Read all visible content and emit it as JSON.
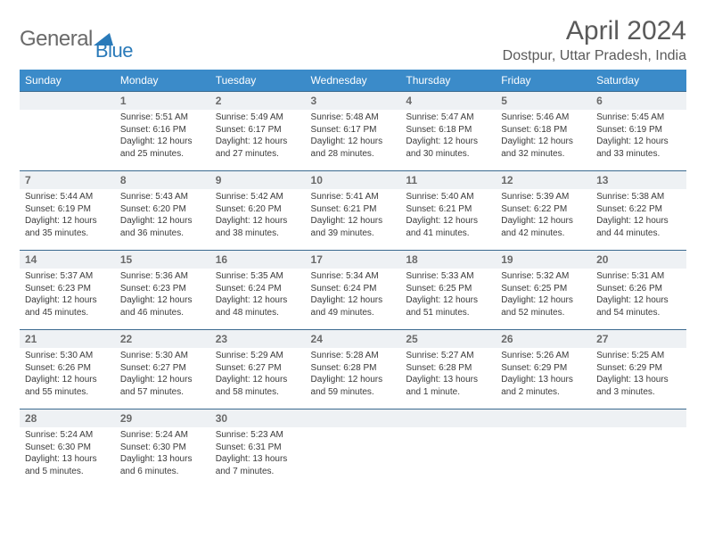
{
  "brand": {
    "general": "General",
    "blue": "Blue"
  },
  "title": "April 2024",
  "location": "Dostpur, Uttar Pradesh, India",
  "colors": {
    "header_bg": "#3b8bc9",
    "header_text": "#ffffff",
    "daynum_bg": "#eef1f4",
    "rule": "#3b6a8f",
    "text": "#3a3a3a",
    "muted": "#6a6a6a",
    "brand_blue": "#2a7ab9"
  },
  "days_of_week": [
    "Sunday",
    "Monday",
    "Tuesday",
    "Wednesday",
    "Thursday",
    "Friday",
    "Saturday"
  ],
  "weeks": [
    [
      null,
      {
        "n": "1",
        "sr": "5:51 AM",
        "ss": "6:16 PM",
        "dl": "12 hours and 25 minutes."
      },
      {
        "n": "2",
        "sr": "5:49 AM",
        "ss": "6:17 PM",
        "dl": "12 hours and 27 minutes."
      },
      {
        "n": "3",
        "sr": "5:48 AM",
        "ss": "6:17 PM",
        "dl": "12 hours and 28 minutes."
      },
      {
        "n": "4",
        "sr": "5:47 AM",
        "ss": "6:18 PM",
        "dl": "12 hours and 30 minutes."
      },
      {
        "n": "5",
        "sr": "5:46 AM",
        "ss": "6:18 PM",
        "dl": "12 hours and 32 minutes."
      },
      {
        "n": "6",
        "sr": "5:45 AM",
        "ss": "6:19 PM",
        "dl": "12 hours and 33 minutes."
      }
    ],
    [
      {
        "n": "7",
        "sr": "5:44 AM",
        "ss": "6:19 PM",
        "dl": "12 hours and 35 minutes."
      },
      {
        "n": "8",
        "sr": "5:43 AM",
        "ss": "6:20 PM",
        "dl": "12 hours and 36 minutes."
      },
      {
        "n": "9",
        "sr": "5:42 AM",
        "ss": "6:20 PM",
        "dl": "12 hours and 38 minutes."
      },
      {
        "n": "10",
        "sr": "5:41 AM",
        "ss": "6:21 PM",
        "dl": "12 hours and 39 minutes."
      },
      {
        "n": "11",
        "sr": "5:40 AM",
        "ss": "6:21 PM",
        "dl": "12 hours and 41 minutes."
      },
      {
        "n": "12",
        "sr": "5:39 AM",
        "ss": "6:22 PM",
        "dl": "12 hours and 42 minutes."
      },
      {
        "n": "13",
        "sr": "5:38 AM",
        "ss": "6:22 PM",
        "dl": "12 hours and 44 minutes."
      }
    ],
    [
      {
        "n": "14",
        "sr": "5:37 AM",
        "ss": "6:23 PM",
        "dl": "12 hours and 45 minutes."
      },
      {
        "n": "15",
        "sr": "5:36 AM",
        "ss": "6:23 PM",
        "dl": "12 hours and 46 minutes."
      },
      {
        "n": "16",
        "sr": "5:35 AM",
        "ss": "6:24 PM",
        "dl": "12 hours and 48 minutes."
      },
      {
        "n": "17",
        "sr": "5:34 AM",
        "ss": "6:24 PM",
        "dl": "12 hours and 49 minutes."
      },
      {
        "n": "18",
        "sr": "5:33 AM",
        "ss": "6:25 PM",
        "dl": "12 hours and 51 minutes."
      },
      {
        "n": "19",
        "sr": "5:32 AM",
        "ss": "6:25 PM",
        "dl": "12 hours and 52 minutes."
      },
      {
        "n": "20",
        "sr": "5:31 AM",
        "ss": "6:26 PM",
        "dl": "12 hours and 54 minutes."
      }
    ],
    [
      {
        "n": "21",
        "sr": "5:30 AM",
        "ss": "6:26 PM",
        "dl": "12 hours and 55 minutes."
      },
      {
        "n": "22",
        "sr": "5:30 AM",
        "ss": "6:27 PM",
        "dl": "12 hours and 57 minutes."
      },
      {
        "n": "23",
        "sr": "5:29 AM",
        "ss": "6:27 PM",
        "dl": "12 hours and 58 minutes."
      },
      {
        "n": "24",
        "sr": "5:28 AM",
        "ss": "6:28 PM",
        "dl": "12 hours and 59 minutes."
      },
      {
        "n": "25",
        "sr": "5:27 AM",
        "ss": "6:28 PM",
        "dl": "13 hours and 1 minute."
      },
      {
        "n": "26",
        "sr": "5:26 AM",
        "ss": "6:29 PM",
        "dl": "13 hours and 2 minutes."
      },
      {
        "n": "27",
        "sr": "5:25 AM",
        "ss": "6:29 PM",
        "dl": "13 hours and 3 minutes."
      }
    ],
    [
      {
        "n": "28",
        "sr": "5:24 AM",
        "ss": "6:30 PM",
        "dl": "13 hours and 5 minutes."
      },
      {
        "n": "29",
        "sr": "5:24 AM",
        "ss": "6:30 PM",
        "dl": "13 hours and 6 minutes."
      },
      {
        "n": "30",
        "sr": "5:23 AM",
        "ss": "6:31 PM",
        "dl": "13 hours and 7 minutes."
      },
      null,
      null,
      null,
      null
    ]
  ],
  "labels": {
    "sunrise": "Sunrise:",
    "sunset": "Sunset:",
    "daylight": "Daylight:"
  }
}
